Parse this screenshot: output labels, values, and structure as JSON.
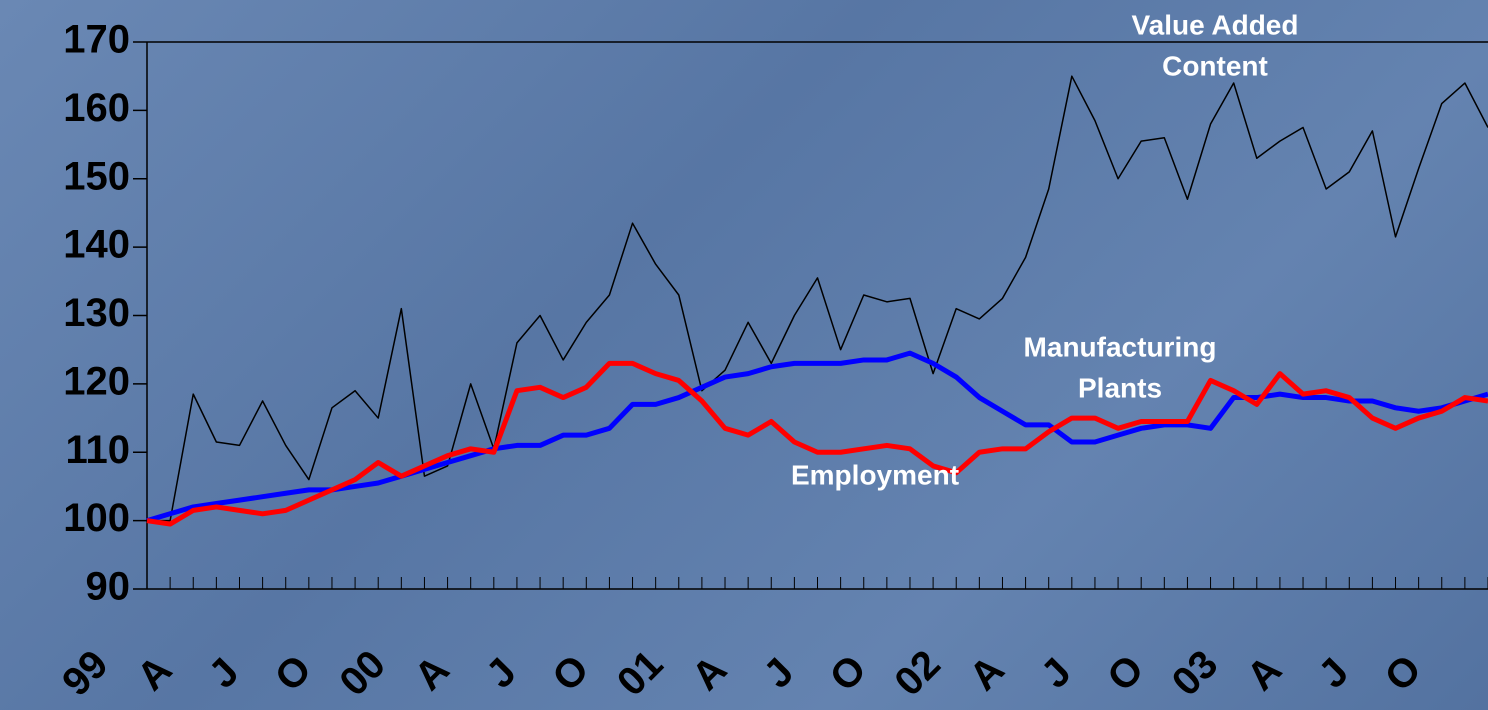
{
  "chart_data": {
    "type": "line",
    "categories": [
      "99",
      null,
      null,
      "A",
      null,
      null,
      "J",
      null,
      null,
      "O",
      null,
      null,
      "00",
      null,
      null,
      "A",
      null,
      null,
      "J",
      null,
      null,
      "O",
      null,
      null,
      "01",
      null,
      null,
      "A",
      null,
      null,
      "J",
      null,
      null,
      "O",
      null,
      null,
      "02",
      null,
      null,
      "A",
      null,
      null,
      "J",
      null,
      null,
      "O",
      null,
      null,
      "03",
      null,
      null,
      "A",
      null,
      null,
      "J",
      null,
      null,
      "O",
      null
    ],
    "series": [
      {
        "color": "#000000",
        "values": [
          100,
          100,
          118.5,
          111.5,
          111,
          117.5,
          111,
          106,
          116.5,
          119,
          115,
          131,
          106.5,
          108,
          120,
          110.5,
          126,
          130,
          123.5,
          129,
          133,
          143.5,
          137.5,
          133,
          119,
          122,
          129,
          123,
          130,
          135.5,
          125,
          133,
          132,
          132.5,
          121.5,
          131,
          129.5,
          132.5,
          138.5,
          148.5,
          165,
          158.5,
          150,
          155.5,
          156,
          147,
          158,
          164,
          153,
          155.5,
          157.5,
          148.5,
          151,
          157,
          141.5,
          151.5,
          161,
          164,
          157.5
        ]
      },
      {
        "color": "#0000ff",
        "values": [
          100,
          101,
          102,
          102.5,
          103,
          103.5,
          104,
          104.5,
          104.5,
          105,
          105.5,
          106.5,
          107.5,
          108.5,
          109.5,
          110.5,
          111,
          111,
          112.5,
          112.5,
          113.5,
          117,
          117,
          118,
          119.5,
          121,
          121.5,
          122.5,
          123,
          123,
          123,
          123.5,
          123.5,
          124.5,
          123,
          121,
          118,
          116,
          114,
          114,
          111.5,
          111.5,
          112.5,
          113.5,
          114,
          114,
          113.5,
          118,
          118,
          118.5,
          118,
          118,
          117.5,
          117.5,
          116.5,
          116,
          116.5,
          117.5,
          118.5
        ]
      },
      {
        "color": "#ff0000",
        "values": [
          100,
          99.5,
          101.5,
          102,
          101.5,
          101,
          101.5,
          103,
          104.5,
          106,
          108.5,
          106.5,
          108,
          109.5,
          110.5,
          110,
          119,
          119.5,
          118,
          119.5,
          123,
          123,
          121.5,
          120.5,
          117.5,
          113.5,
          112.5,
          114.5,
          111.5,
          110,
          110,
          110.5,
          111,
          110.5,
          108,
          107,
          110,
          110.5,
          110.5,
          113,
          115,
          115,
          113.5,
          114.5,
          114.5,
          114.5,
          120.5,
          119,
          117,
          121.5,
          118.5,
          119,
          118,
          115,
          113.5,
          115,
          116,
          118,
          117.5
        ]
      }
    ],
    "annotations": [
      [
        "Value Added",
        "Content"
      ],
      [
        "Manufacturing",
        "Plants"
      ],
      [
        "Employment"
      ]
    ],
    "ylim": [
      90,
      170
    ],
    "yticks": [
      90,
      100,
      110,
      120,
      130,
      140,
      150,
      160,
      170
    ]
  }
}
